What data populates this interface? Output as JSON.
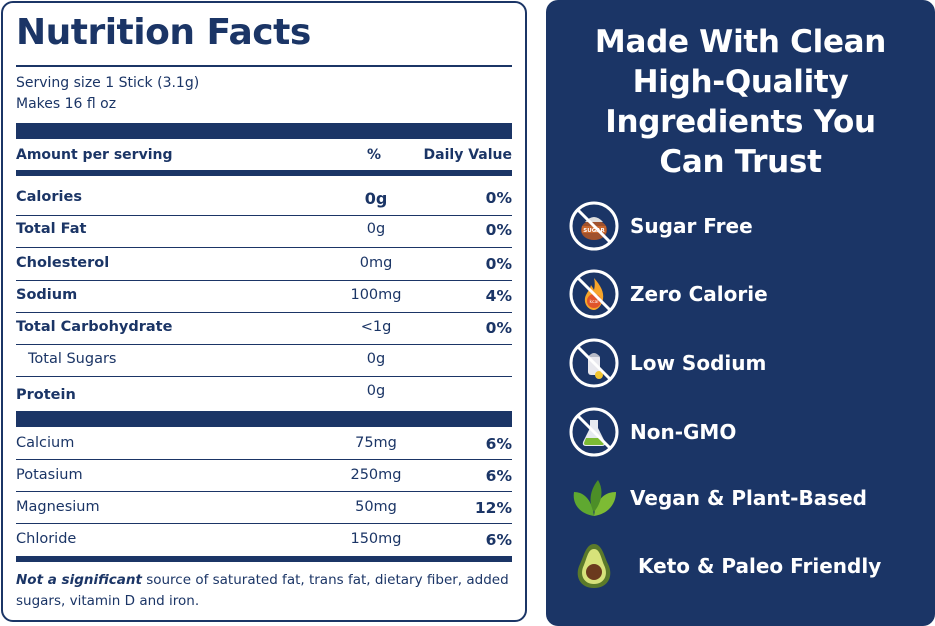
{
  "nutrition": {
    "title": "Nutrition Facts",
    "serving_size": "Serving size 1 Stick (3.1g)",
    "makes": "Makes 16 fl oz",
    "header": {
      "amount": "Amount per serving",
      "percent": "%",
      "daily": "Daily Value"
    },
    "rows": [
      {
        "name": "Calories",
        "amount": "0g",
        "dv": "0%"
      },
      {
        "name": "Total Fat",
        "amount": "0g",
        "dv": "0%"
      },
      {
        "name": "Cholesterol",
        "amount": "0mg",
        "dv": "0%"
      },
      {
        "name": "Sodium",
        "amount": "100mg",
        "dv": "4%"
      },
      {
        "name": "Total Carbohydrate",
        "amount": "<1g",
        "dv": "0%"
      },
      {
        "name": "Total Sugars",
        "amount": "0g",
        "dv": ""
      },
      {
        "name": "Protein",
        "amount": "0g",
        "dv": ""
      }
    ],
    "minerals": [
      {
        "name": "Calcium",
        "amount": "75mg",
        "dv": "6%"
      },
      {
        "name": "Potasium",
        "amount": "250mg",
        "dv": "6%"
      },
      {
        "name": "Magnesium",
        "amount": "50mg",
        "dv": "12%"
      },
      {
        "name": "Chloride",
        "amount": "150mg",
        "dv": "6%"
      }
    ],
    "footnote_bold": "Not a significant",
    "footnote_rest": " source of saturated fat, trans fat, dietary fiber, added sugars, vitamin D and iron."
  },
  "features": {
    "title_lines": [
      "Made With Clean",
      "High-Quality",
      "Ingredients You",
      "Can Trust"
    ],
    "items": [
      {
        "label": "Sugar Free",
        "icon": "no-sugar-icon",
        "sugar_text": "SUGAR"
      },
      {
        "label": "Zero Calorie",
        "icon": "no-calorie-icon",
        "kcal_text": "kcal"
      },
      {
        "label": "Low Sodium",
        "icon": "no-salt-icon"
      },
      {
        "label": "Non-GMO",
        "icon": "no-gmo-icon"
      },
      {
        "label": "Vegan & Plant-Based",
        "icon": "leaf-icon"
      },
      {
        "label": "Keto & Paleo Friendly",
        "icon": "avocado-icon"
      }
    ]
  },
  "colors": {
    "navy": "#1B3566",
    "white": "#FFFFFF",
    "green": "#7DBB34",
    "avocado": "#5B7A2A"
  }
}
